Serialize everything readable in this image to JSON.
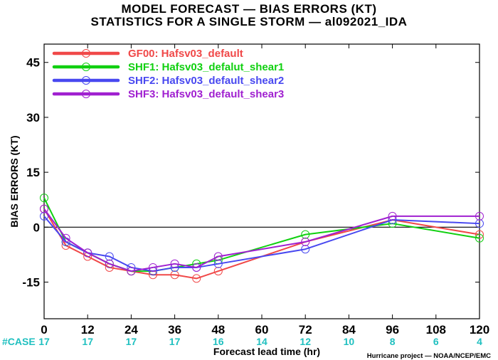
{
  "title_line1": "MODEL FORECAST — BIAS ERRORS (KT)",
  "title_line2": "STATISTICS FOR A SINGLE STORM — al092021_IDA",
  "case_label": "#CASE",
  "case_counts": [
    "17",
    "17",
    "17",
    "17",
    "16",
    "14",
    "12",
    "10",
    "8",
    "6",
    "4"
  ],
  "credit": "Hurricane project — NOAA/NCEP/EMC",
  "chart_data": {
    "type": "line",
    "xlabel": "Forecast lead time (hr)",
    "ylabel": "BIAS ERRORS (KT)",
    "xlim": [
      0,
      120
    ],
    "ylim": [
      -25,
      50
    ],
    "x_ticks": [
      0,
      12,
      24,
      36,
      48,
      60,
      72,
      84,
      96,
      108,
      120
    ],
    "y_ticks": [
      45,
      30,
      15,
      0,
      -15
    ],
    "zero_line": true,
    "legend_position": "top-left",
    "series": [
      {
        "name": "GF00: Hafsv03_default",
        "color": "#f04848",
        "x": [
          0,
          6,
          12,
          18,
          24,
          30,
          36,
          42,
          48,
          72,
          96,
          120
        ],
        "y": [
          5,
          -5,
          -8,
          -11,
          -12,
          -13,
          -13,
          -14,
          -12,
          -4,
          2,
          -2
        ]
      },
      {
        "name": "SHF1: Hafsv03_defalut_shear1",
        "color": "#10d010",
        "x": [
          0,
          6,
          12,
          18,
          24,
          30,
          36,
          42,
          48,
          72,
          96,
          120
        ],
        "y": [
          8,
          -4,
          -7,
          -10,
          -12,
          -12,
          -11,
          -10,
          -9,
          -2,
          1,
          -3
        ]
      },
      {
        "name": "SHF2: Hafsv03_default_shear2",
        "color": "#4848f0",
        "x": [
          0,
          6,
          12,
          18,
          24,
          30,
          36,
          42,
          48,
          72,
          96,
          120
        ],
        "y": [
          3,
          -4,
          -7,
          -8,
          -11,
          -12,
          -11,
          -11,
          -10,
          -6,
          2,
          1
        ]
      },
      {
        "name": "SHF3: Hafsv03_default_shear3",
        "color": "#a020d0",
        "x": [
          0,
          6,
          12,
          18,
          24,
          30,
          36,
          42,
          48,
          72,
          96,
          120
        ],
        "y": [
          5,
          -3,
          -7,
          -10,
          -12,
          -11,
          -10,
          -11,
          -8,
          -4,
          3,
          3
        ]
      }
    ]
  }
}
